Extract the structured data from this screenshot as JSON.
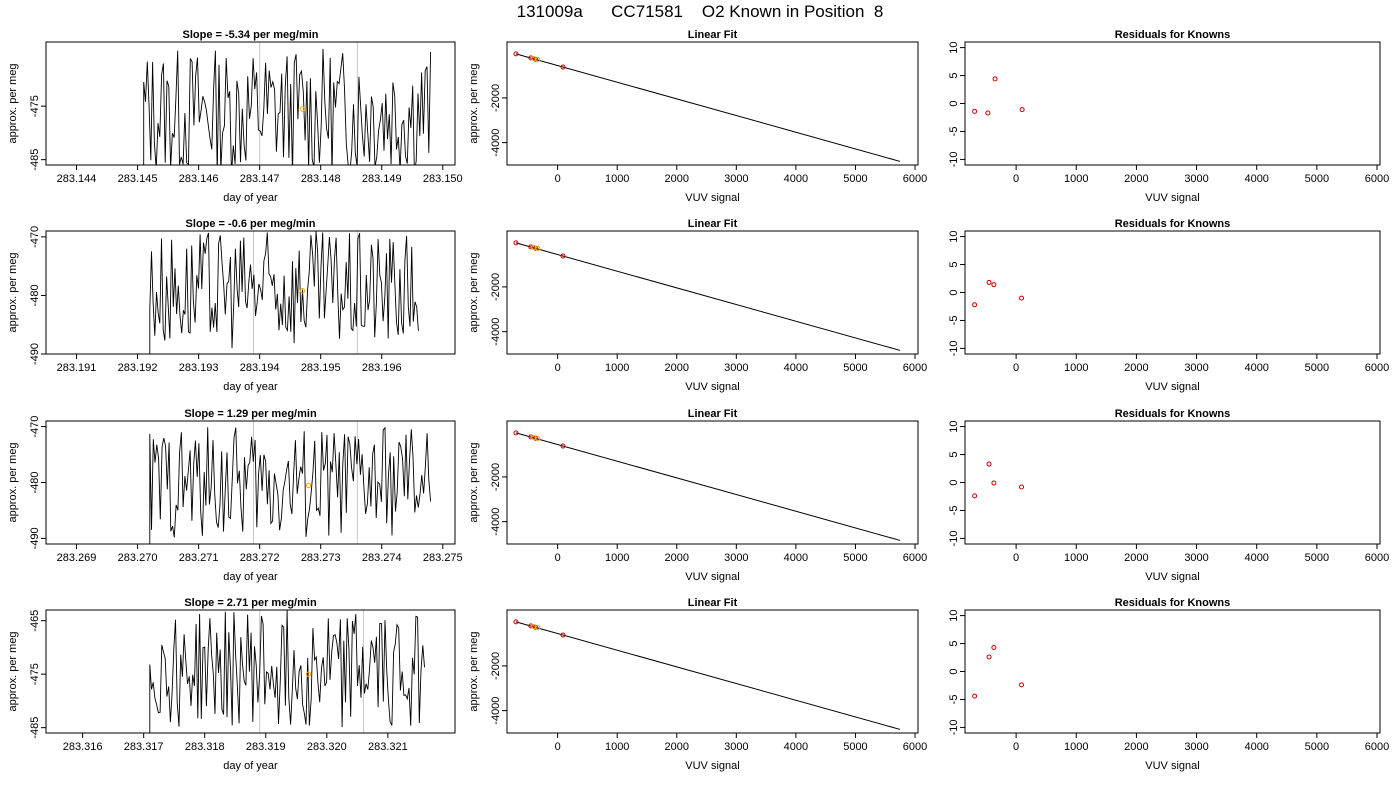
{
  "figure": {
    "title_parts": [
      "131009a",
      "CC71581",
      "O2 Known in Position",
      "8"
    ]
  },
  "colors": {
    "line": "#000000",
    "marker_orange": "#ffa500",
    "marker_red": "#cc0000",
    "vline": "#c8c8c8"
  },
  "chart_data": [
    {
      "type": "line",
      "panel": "time-1",
      "title": "Slope =  -5.34  per meg/min",
      "xlabel": "day of year",
      "ylabel": "approx. per meg",
      "xlim": [
        283.1435,
        283.1502
      ],
      "ylim": [
        -486,
        -463
      ],
      "xticks": [
        "283.144",
        "283.145",
        "283.146",
        "283.147",
        "283.148",
        "283.149",
        "283.150"
      ],
      "yticks": [
        "-475",
        "-485"
      ],
      "ytick_values": [
        -475,
        -485
      ],
      "x_range": [
        283.1451,
        283.1498
      ],
      "mean": -476,
      "amplitude": 12,
      "highlight_point": {
        "x": 283.1477,
        "y": -475.5
      },
      "vlines": [
        283.147,
        283.1486
      ]
    },
    {
      "type": "scatter",
      "panel": "fit-1",
      "title": "Linear Fit",
      "xlabel": "VUV signal",
      "ylabel": "approx. per meg",
      "xlim": [
        -850,
        6050
      ],
      "ylim": [
        -5000,
        500
      ],
      "xticks": [
        "0",
        "1000",
        "2000",
        "3000",
        "4000",
        "5000",
        "6000"
      ],
      "yticks": [
        "-2000",
        "-4000"
      ],
      "ytick_values": [
        -2000,
        -4000
      ],
      "line": [
        [
          -700,
          -30
        ],
        [
          5750,
          -4840
        ]
      ],
      "points_red": [
        [
          -700,
          -30
        ],
        [
          -450,
          -210
        ],
        [
          -370,
          -270
        ],
        [
          90,
          -620
        ]
      ],
      "points_orange": [
        [
          -400,
          -240
        ],
        [
          -330,
          -290
        ]
      ]
    },
    {
      "type": "scatter",
      "panel": "resid-1",
      "title": "Residuals for Knowns",
      "xlabel": "VUV signal",
      "ylabel": "",
      "xlim": [
        -850,
        6050
      ],
      "ylim": [
        -11,
        11
      ],
      "xticks": [
        "0",
        "1000",
        "2000",
        "3000",
        "4000",
        "5000",
        "6000"
      ],
      "yticks": [
        "10",
        "5",
        "0",
        "-5",
        "-10"
      ],
      "ytick_values": [
        10,
        5,
        0,
        -5,
        -10
      ],
      "points_red": [
        [
          -690,
          -1.4
        ],
        [
          -470,
          -1.7
        ],
        [
          -350,
          4.4
        ],
        [
          100,
          -1.1
        ]
      ]
    },
    {
      "type": "line",
      "panel": "time-2",
      "title": "Slope =  -0.6  per meg/min",
      "xlabel": "day of year",
      "ylabel": "approx. per meg",
      "xlim": [
        283.1905,
        283.1972
      ],
      "ylim": [
        -490,
        -469
      ],
      "xticks": [
        "283.191",
        "283.192",
        "283.193",
        "283.194",
        "283.195",
        "283.196"
      ],
      "yticks": [
        "-470",
        "-480",
        "-490"
      ],
      "ytick_values": [
        -470,
        -480,
        -490
      ],
      "x_range": [
        283.1922,
        283.1966
      ],
      "mean": -479,
      "amplitude": 10,
      "highlight_point": {
        "x": 283.1947,
        "y": -479.2
      },
      "vlines": [
        283.1939,
        283.1956
      ]
    },
    {
      "type": "scatter",
      "panel": "fit-2",
      "title": "Linear Fit",
      "xlabel": "VUV signal",
      "ylabel": "approx. per meg",
      "xlim": [
        -850,
        6050
      ],
      "ylim": [
        -5000,
        500
      ],
      "xticks": [
        "0",
        "1000",
        "2000",
        "3000",
        "4000",
        "5000",
        "6000"
      ],
      "yticks": [
        "-2000",
        "-4000"
      ],
      "ytick_values": [
        -2000,
        -4000
      ],
      "line": [
        [
          -700,
          -30
        ],
        [
          5750,
          -4840
        ]
      ],
      "points_red": [
        [
          -700,
          -30
        ],
        [
          -450,
          -210
        ],
        [
          -370,
          -270
        ],
        [
          90,
          -620
        ]
      ],
      "points_orange": [
        [
          -400,
          -240
        ],
        [
          -330,
          -290
        ]
      ]
    },
    {
      "type": "scatter",
      "panel": "resid-2",
      "title": "Residuals for Knowns",
      "xlabel": "VUV signal",
      "ylabel": "",
      "xlim": [
        -850,
        6050
      ],
      "ylim": [
        -11,
        11
      ],
      "xticks": [
        "0",
        "1000",
        "2000",
        "3000",
        "4000",
        "5000",
        "6000"
      ],
      "yticks": [
        "10",
        "5",
        "0",
        "-5",
        "-10"
      ],
      "ytick_values": [
        10,
        5,
        0,
        -5,
        -10
      ],
      "points_red": [
        [
          -690,
          -2.2
        ],
        [
          -450,
          1.8
        ],
        [
          -370,
          1.4
        ],
        [
          90,
          -1.0
        ]
      ]
    },
    {
      "type": "line",
      "panel": "time-3",
      "title": "Slope =  1.29  per meg/min",
      "xlabel": "day of year",
      "ylabel": "approx. per meg",
      "xlim": [
        283.2685,
        283.2752
      ],
      "ylim": [
        -491,
        -469
      ],
      "xticks": [
        "283.269",
        "283.270",
        "283.271",
        "283.272",
        "283.273",
        "283.274",
        "283.275"
      ],
      "yticks": [
        "-470",
        "-480",
        "-490"
      ],
      "ytick_values": [
        -470,
        -480,
        -490
      ],
      "x_range": [
        283.2702,
        283.2748
      ],
      "mean": -480,
      "amplitude": 10,
      "highlight_point": {
        "x": 283.2728,
        "y": -480.5
      },
      "vlines": [
        283.2719,
        283.2736
      ]
    },
    {
      "type": "scatter",
      "panel": "fit-3",
      "title": "Linear Fit",
      "xlabel": "VUV signal",
      "ylabel": "approx. per meg",
      "xlim": [
        -850,
        6050
      ],
      "ylim": [
        -5000,
        500
      ],
      "xticks": [
        "0",
        "1000",
        "2000",
        "3000",
        "4000",
        "5000",
        "6000"
      ],
      "yticks": [
        "-2000",
        "-4000"
      ],
      "ytick_values": [
        -2000,
        -4000
      ],
      "line": [
        [
          -700,
          -30
        ],
        [
          5750,
          -4840
        ]
      ],
      "points_red": [
        [
          -700,
          -30
        ],
        [
          -450,
          -210
        ],
        [
          -370,
          -270
        ],
        [
          90,
          -620
        ]
      ],
      "points_orange": [
        [
          -400,
          -240
        ],
        [
          -330,
          -290
        ]
      ]
    },
    {
      "type": "scatter",
      "panel": "resid-3",
      "title": "Residuals for Knowns",
      "xlabel": "VUV signal",
      "ylabel": "",
      "xlim": [
        -850,
        6050
      ],
      "ylim": [
        -11,
        11
      ],
      "xticks": [
        "0",
        "1000",
        "2000",
        "3000",
        "4000",
        "5000",
        "6000"
      ],
      "yticks": [
        "10",
        "5",
        "0",
        "-5",
        "-10"
      ],
      "ytick_values": [
        10,
        5,
        0,
        -5,
        -10
      ],
      "points_red": [
        [
          -690,
          -2.4
        ],
        [
          -450,
          3.3
        ],
        [
          -370,
          -0.1
        ],
        [
          90,
          -0.8
        ]
      ]
    },
    {
      "type": "line",
      "panel": "time-4",
      "title": "Slope =  2.71  per meg/min",
      "xlabel": "day of year",
      "ylabel": "approx. per meg",
      "xlim": [
        283.3154,
        283.3221
      ],
      "ylim": [
        -486,
        -463
      ],
      "xticks": [
        "283.316",
        "283.317",
        "283.318",
        "283.319",
        "283.320",
        "283.321"
      ],
      "yticks": [
        "-465",
        "-475",
        "-485"
      ],
      "ytick_values": [
        -465,
        -475,
        -485
      ],
      "x_range": [
        283.3171,
        283.3216
      ],
      "mean": -474,
      "amplitude": 11,
      "highlight_point": {
        "x": 283.3197,
        "y": -475
      },
      "vlines": [
        283.3189,
        283.3206
      ]
    },
    {
      "type": "scatter",
      "panel": "fit-4",
      "title": "Linear Fit",
      "xlabel": "VUV signal",
      "ylabel": "approx. per meg",
      "xlim": [
        -850,
        6050
      ],
      "ylim": [
        -5000,
        500
      ],
      "xticks": [
        "0",
        "1000",
        "2000",
        "3000",
        "4000",
        "5000",
        "6000"
      ],
      "yticks": [
        "-2000",
        "-4000"
      ],
      "ytick_values": [
        -2000,
        -4000
      ],
      "line": [
        [
          -700,
          -30
        ],
        [
          5750,
          -4840
        ]
      ],
      "points_red": [
        [
          -700,
          -30
        ],
        [
          -450,
          -210
        ],
        [
          -370,
          -270
        ],
        [
          90,
          -620
        ]
      ],
      "points_orange": [
        [
          -400,
          -240
        ],
        [
          -330,
          -290
        ]
      ]
    },
    {
      "type": "scatter",
      "panel": "resid-4",
      "title": "Residuals for Knowns",
      "xlabel": "VUV signal",
      "ylabel": "",
      "xlim": [
        -850,
        6050
      ],
      "ylim": [
        -11,
        11
      ],
      "xticks": [
        "0",
        "1000",
        "2000",
        "3000",
        "4000",
        "5000",
        "6000"
      ],
      "yticks": [
        "10",
        "5",
        "0",
        "-5",
        "-10"
      ],
      "ytick_values": [
        10,
        5,
        0,
        -5,
        -10
      ],
      "points_red": [
        [
          -690,
          -4.4
        ],
        [
          -450,
          2.6
        ],
        [
          -370,
          4.3
        ],
        [
          90,
          -2.4
        ]
      ]
    }
  ]
}
